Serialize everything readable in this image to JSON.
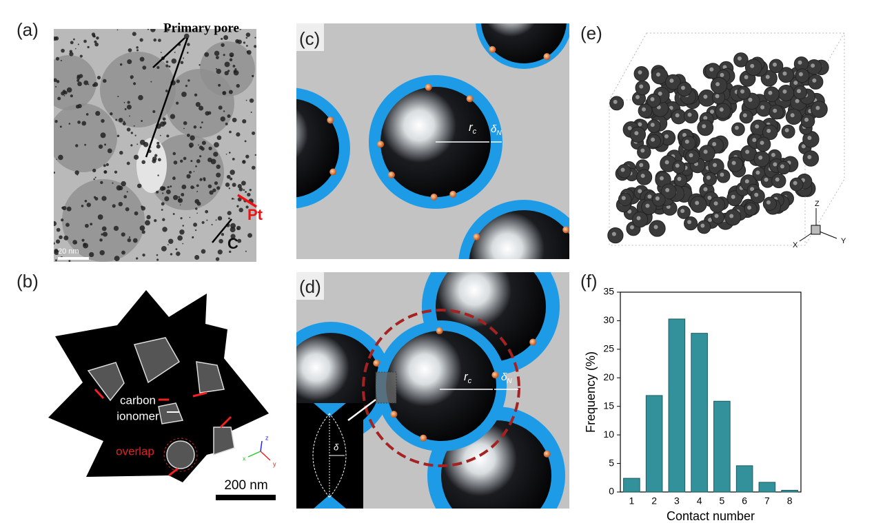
{
  "panels": {
    "a": {
      "label": "(a)",
      "primary_pore": "Primary pore",
      "pt": "Pt",
      "c": "C",
      "scale_bar": "20 nm"
    },
    "b": {
      "label": "(b)",
      "carbon": "carbon",
      "ionomer": "ionomer",
      "overlap": "overlap",
      "scale_bar": "200 nm",
      "axes": [
        "z",
        "x",
        "y"
      ]
    },
    "c": {
      "label": "(c)",
      "radius": {
        "symbol": "r",
        "subscript": "c"
      },
      "thickness": {
        "symbol": "δ",
        "subscript": "N"
      }
    },
    "d": {
      "label": "(d)",
      "radius": {
        "symbol": "r",
        "subscript": "c"
      },
      "thickness": {
        "symbol": "δ",
        "subscript": "N"
      },
      "overlap_depth": "δ"
    },
    "e": {
      "label": "(e)",
      "axes": [
        "Z",
        "X",
        "Y"
      ]
    },
    "f": {
      "label": "(f)"
    }
  },
  "chart_data": {
    "type": "bar",
    "x_label": "Contact number",
    "y_label": "Frequency (%)",
    "categories": [
      "1",
      "2",
      "3",
      "4",
      "5",
      "6",
      "7",
      "8"
    ],
    "values": [
      2.4,
      16.9,
      30.3,
      27.8,
      15.9,
      4.6,
      1.7,
      0.3
    ],
    "color": "#33919b",
    "ylim": [
      0,
      35
    ],
    "yticks": [
      0,
      5,
      10,
      15,
      20,
      25,
      30,
      35
    ]
  }
}
